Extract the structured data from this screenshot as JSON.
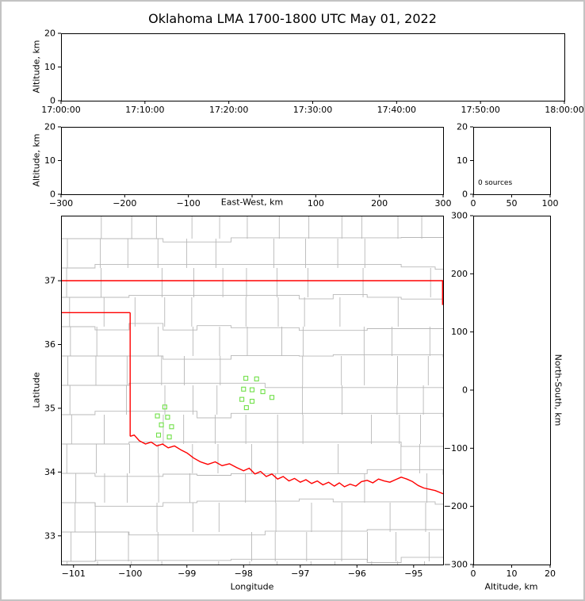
{
  "title": "Oklahoma LMA 1700-1800 UTC May 01, 2022",
  "colors": {
    "state_border": "#ff0000",
    "county_lines": "#b8b8b8",
    "stations": "#70e048",
    "axes": "#000000",
    "figure_frame": "#c3c3c3",
    "background": "#ffffff"
  },
  "chart_data": [
    {
      "id": "time_altitude",
      "type": "scatter",
      "ylabel": "Altitude, km",
      "xlim": [
        0,
        3600
      ],
      "ylim": [
        0,
        20
      ],
      "x_ticks": [
        0,
        600,
        1200,
        1800,
        2400,
        3000,
        3600
      ],
      "x_tick_labels": [
        "17:00:00",
        "17:10:00",
        "17:20:00",
        "17:30:00",
        "17:40:00",
        "17:50:00",
        "18:00:00"
      ],
      "y_ticks": [
        0,
        10,
        20
      ],
      "y_tick_labels": [
        "0",
        "10",
        "20"
      ],
      "points": []
    },
    {
      "id": "ew_altitude",
      "type": "scatter",
      "xlabel": "East-West, km",
      "ylabel": "Altitude, km",
      "xlim": [
        -300,
        300
      ],
      "ylim": [
        0,
        20
      ],
      "x_ticks": [
        -300,
        -200,
        -100,
        0,
        100,
        200,
        300
      ],
      "x_tick_labels": [
        "−300",
        "−200",
        "−100",
        "",
        "100",
        "200",
        "300"
      ],
      "y_ticks": [
        0,
        10,
        20
      ],
      "y_tick_labels": [
        "0",
        "10",
        "20"
      ],
      "points": []
    },
    {
      "id": "source_histogram",
      "type": "line",
      "annotation": "0 sources",
      "xlim": [
        0,
        100
      ],
      "ylim": [
        0,
        20
      ],
      "x_ticks": [
        0,
        50,
        100
      ],
      "x_tick_labels": [
        "0",
        "50",
        "100"
      ],
      "y_ticks": [
        0,
        10,
        20
      ],
      "y_tick_labels": [
        "0",
        "10",
        "20"
      ],
      "points": []
    },
    {
      "id": "map",
      "type": "scatter",
      "xlabel": "Longitude",
      "ylabel": "Latitude",
      "xlim": [
        -101.22,
        -94.48
      ],
      "ylim": [
        32.55,
        38.02
      ],
      "x_ticks": [
        -101,
        -100,
        -99,
        -98,
        -97,
        -96,
        -95
      ],
      "x_tick_labels": [
        "−101",
        "−100",
        "−99",
        "−98",
        "−97",
        "−96",
        "−95"
      ],
      "y_ticks": [
        33,
        34,
        35,
        36,
        37
      ],
      "y_tick_labels": [
        "33",
        "34",
        "35",
        "36",
        "37"
      ],
      "stations": [
        [
          -97.96,
          35.47
        ],
        [
          -97.77,
          35.46
        ],
        [
          -98.0,
          35.3
        ],
        [
          -97.85,
          35.29
        ],
        [
          -97.66,
          35.26
        ],
        [
          -98.03,
          35.14
        ],
        [
          -97.85,
          35.11
        ],
        [
          -97.5,
          35.17
        ],
        [
          -97.95,
          35.01
        ],
        [
          -99.39,
          35.02
        ],
        [
          -99.52,
          34.88
        ],
        [
          -99.34,
          34.86
        ],
        [
          -99.45,
          34.74
        ],
        [
          -99.27,
          34.71
        ],
        [
          -99.5,
          34.58
        ],
        [
          -99.31,
          34.55
        ]
      ],
      "state_border": [
        [
          [
            -101.22,
            37.0
          ],
          [
            -94.48,
            37.0
          ]
        ],
        [
          [
            -94.49,
            37.0
          ],
          [
            -94.49,
            36.62
          ]
        ],
        [
          [
            -101.22,
            36.5
          ],
          [
            -100.0,
            36.5
          ]
        ],
        [
          [
            -100.0,
            36.5
          ],
          [
            -100.0,
            34.56
          ]
        ],
        [
          [
            -100.0,
            34.56
          ],
          [
            -99.93,
            34.58
          ],
          [
            -99.84,
            34.49
          ],
          [
            -99.73,
            34.44
          ],
          [
            -99.63,
            34.47
          ],
          [
            -99.53,
            34.41
          ],
          [
            -99.43,
            34.44
          ],
          [
            -99.33,
            34.38
          ],
          [
            -99.22,
            34.41
          ],
          [
            -99.11,
            34.35
          ],
          [
            -99.0,
            34.3
          ],
          [
            -98.88,
            34.22
          ],
          [
            -98.76,
            34.16
          ],
          [
            -98.63,
            34.12
          ],
          [
            -98.5,
            34.16
          ],
          [
            -98.38,
            34.1
          ],
          [
            -98.25,
            34.13
          ],
          [
            -98.12,
            34.07
          ],
          [
            -98.0,
            34.02
          ],
          [
            -97.9,
            34.06
          ],
          [
            -97.8,
            33.97
          ],
          [
            -97.7,
            34.01
          ],
          [
            -97.6,
            33.93
          ],
          [
            -97.5,
            33.97
          ],
          [
            -97.4,
            33.89
          ],
          [
            -97.3,
            33.93
          ],
          [
            -97.2,
            33.86
          ],
          [
            -97.1,
            33.9
          ],
          [
            -97.0,
            33.84
          ],
          [
            -96.9,
            33.88
          ],
          [
            -96.8,
            33.82
          ],
          [
            -96.7,
            33.86
          ],
          [
            -96.6,
            33.8
          ],
          [
            -96.5,
            33.84
          ],
          [
            -96.4,
            33.78
          ],
          [
            -96.31,
            33.83
          ],
          [
            -96.22,
            33.77
          ],
          [
            -96.12,
            33.81
          ],
          [
            -96.02,
            33.78
          ],
          [
            -95.92,
            33.85
          ],
          [
            -95.82,
            33.87
          ],
          [
            -95.72,
            33.83
          ],
          [
            -95.62,
            33.89
          ],
          [
            -95.52,
            33.86
          ],
          [
            -95.42,
            33.84
          ],
          [
            -95.32,
            33.88
          ],
          [
            -95.22,
            33.92
          ],
          [
            -95.12,
            33.89
          ],
          [
            -95.02,
            33.85
          ],
          [
            -94.92,
            33.79
          ],
          [
            -94.82,
            33.75
          ],
          [
            -94.72,
            33.73
          ],
          [
            -94.62,
            33.71
          ],
          [
            -94.48,
            33.66
          ]
        ]
      ],
      "points": []
    },
    {
      "id": "ns_altitude",
      "type": "scatter",
      "xlabel": "Altitude, km",
      "ylabel_right": "North-South, km",
      "xlim": [
        0,
        20
      ],
      "ylim": [
        -300,
        300
      ],
      "x_ticks": [
        0,
        10,
        20
      ],
      "x_tick_labels": [
        "0",
        "10",
        "20"
      ],
      "y_ticks": [
        -300,
        -200,
        -100,
        0,
        100,
        200,
        300
      ],
      "y_tick_labels": [
        "−300",
        "−200",
        "−100",
        "0",
        "100",
        "200",
        "300"
      ],
      "points": []
    }
  ]
}
